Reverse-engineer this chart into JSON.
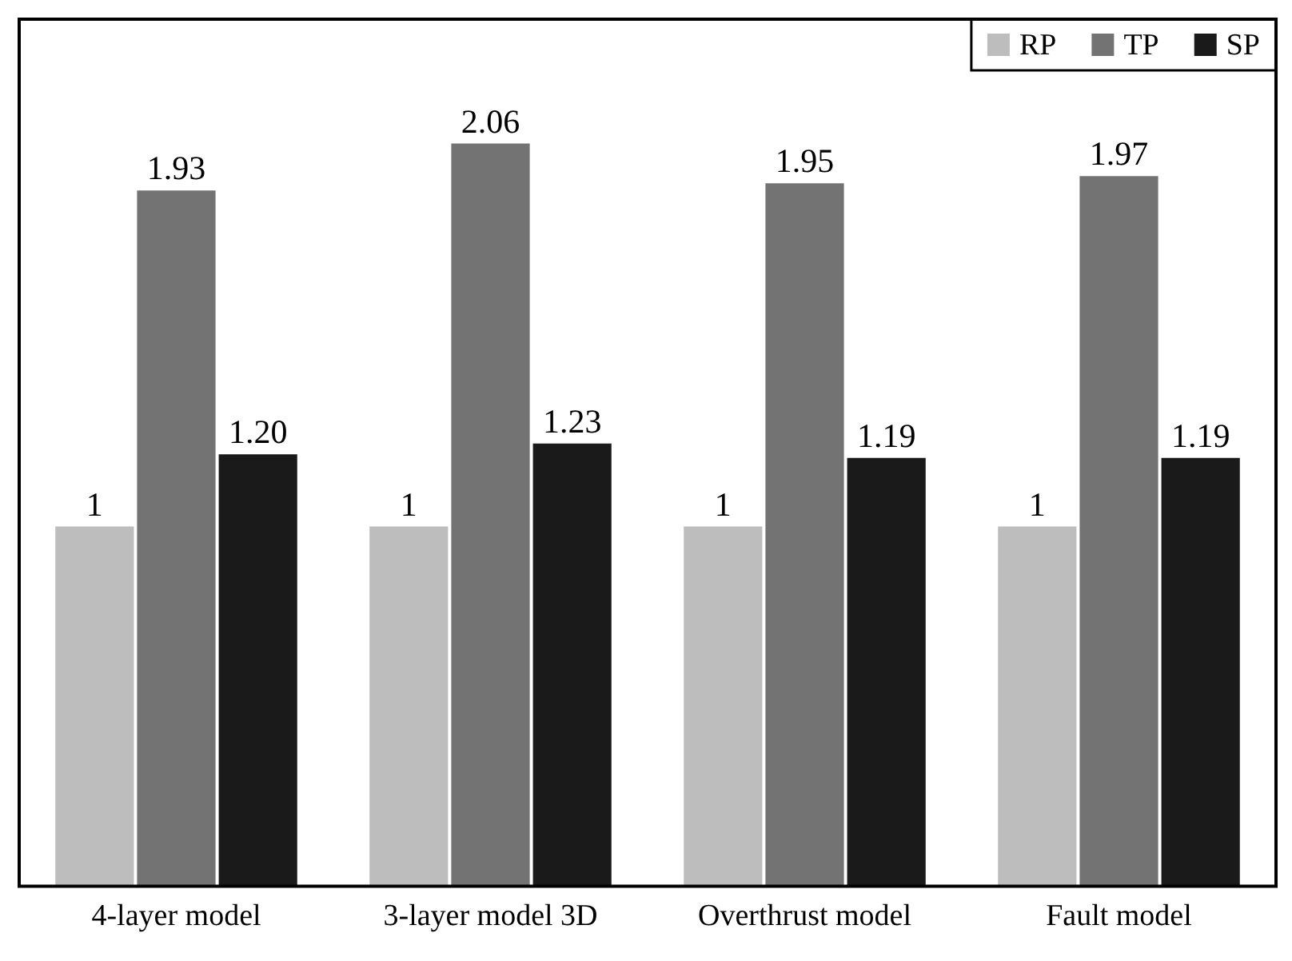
{
  "chart_data": {
    "type": "bar",
    "categories": [
      "4-layer model",
      "3-layer model 3D",
      "Overthrust model",
      "Fault model"
    ],
    "series": [
      {
        "name": "RP",
        "color": "#bdbdbd",
        "values": [
          1,
          1,
          1,
          1
        ],
        "value_labels": [
          "1",
          "1",
          "1",
          "1"
        ]
      },
      {
        "name": "TP",
        "color": "#737373",
        "values": [
          1.93,
          2.06,
          1.95,
          1.97
        ],
        "value_labels": [
          "1.93",
          "2.06",
          "1.95",
          "1.97"
        ]
      },
      {
        "name": "SP",
        "color": "#1a1a1a",
        "values": [
          1.2,
          1.23,
          1.19,
          1.19
        ],
        "value_labels": [
          "1.20",
          "1.23",
          "1.19",
          "1.19"
        ]
      }
    ],
    "ylim": [
      0,
      2.4
    ],
    "tick_labels": "x",
    "grid": false,
    "legend": "top right"
  }
}
